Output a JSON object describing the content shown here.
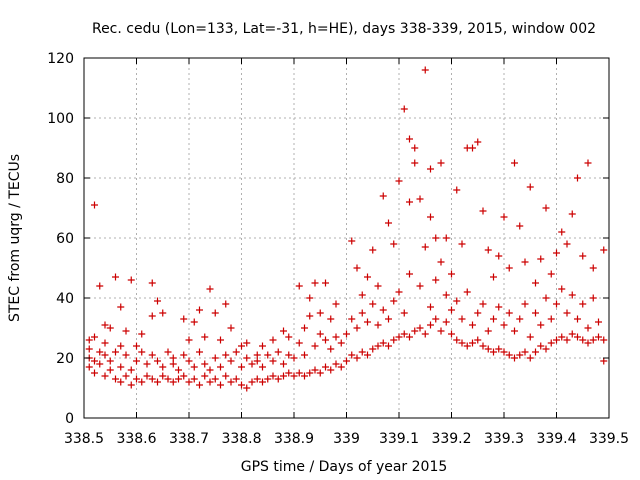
{
  "chart_data": {
    "type": "scatter",
    "title": "Rec. cedu (Lon=133, Lat=-31, h=HE), days 338-339, 2015, window 002",
    "xlabel": "GPS time / Days of year 2015",
    "ylabel": "STEC from uqrg / TECUs",
    "xlim": [
      338.5,
      339.5
    ],
    "ylim": [
      0,
      120
    ],
    "grid": true,
    "marker": "plus",
    "color": "#cc0000",
    "x_ticks": [
      338.5,
      338.6,
      338.7,
      338.8,
      338.9,
      339.0,
      339.1,
      339.2,
      339.3,
      339.4,
      339.5
    ],
    "x_tick_labels": [
      "338.5",
      "338.6",
      "338.7",
      "338.8",
      "338.9",
      "339",
      "339.1",
      "339.2",
      "339.3",
      "339.4",
      "339.5"
    ],
    "y_ticks": [
      0,
      20,
      40,
      60,
      80,
      100,
      120
    ],
    "y_tick_labels": [
      "0",
      "20",
      "40",
      "60",
      "80",
      "100",
      "120"
    ],
    "series": [
      {
        "name": "STEC",
        "points": [
          [
            338.51,
            17
          ],
          [
            338.51,
            20
          ],
          [
            338.51,
            23
          ],
          [
            338.51,
            26
          ],
          [
            338.52,
            71
          ],
          [
            338.52,
            15
          ],
          [
            338.52,
            19
          ],
          [
            338.52,
            27
          ],
          [
            338.53,
            18
          ],
          [
            338.53,
            22
          ],
          [
            338.53,
            44
          ],
          [
            338.54,
            14
          ],
          [
            338.54,
            21
          ],
          [
            338.54,
            25
          ],
          [
            338.54,
            31
          ],
          [
            338.55,
            16
          ],
          [
            338.55,
            19
          ],
          [
            338.55,
            30
          ],
          [
            338.56,
            13
          ],
          [
            338.56,
            22
          ],
          [
            338.56,
            47
          ],
          [
            338.57,
            12
          ],
          [
            338.57,
            17
          ],
          [
            338.57,
            24
          ],
          [
            338.57,
            37
          ],
          [
            338.58,
            14
          ],
          [
            338.58,
            21
          ],
          [
            338.58,
            29
          ],
          [
            338.59,
            11
          ],
          [
            338.59,
            16
          ],
          [
            338.59,
            46
          ],
          [
            338.6,
            13
          ],
          [
            338.6,
            19
          ],
          [
            338.6,
            24
          ],
          [
            338.61,
            12
          ],
          [
            338.61,
            22
          ],
          [
            338.61,
            28
          ],
          [
            338.62,
            14
          ],
          [
            338.62,
            18
          ],
          [
            338.63,
            45
          ],
          [
            338.63,
            13
          ],
          [
            338.63,
            21
          ],
          [
            338.63,
            34
          ],
          [
            338.64,
            12
          ],
          [
            338.64,
            19
          ],
          [
            338.64,
            39
          ],
          [
            338.65,
            14
          ],
          [
            338.65,
            17
          ],
          [
            338.65,
            35
          ],
          [
            338.66,
            13
          ],
          [
            338.66,
            22
          ],
          [
            338.67,
            12
          ],
          [
            338.67,
            18
          ],
          [
            338.67,
            20
          ],
          [
            338.68,
            13
          ],
          [
            338.68,
            16
          ],
          [
            338.69,
            14
          ],
          [
            338.69,
            21
          ],
          [
            338.69,
            33
          ],
          [
            338.7,
            12
          ],
          [
            338.7,
            19
          ],
          [
            338.7,
            26
          ],
          [
            338.71,
            13
          ],
          [
            338.71,
            17
          ],
          [
            338.71,
            32
          ],
          [
            338.72,
            11
          ],
          [
            338.72,
            22
          ],
          [
            338.72,
            36
          ],
          [
            338.73,
            14
          ],
          [
            338.73,
            18
          ],
          [
            338.73,
            27
          ],
          [
            338.74,
            12
          ],
          [
            338.74,
            16
          ],
          [
            338.74,
            43
          ],
          [
            338.75,
            13
          ],
          [
            338.75,
            20
          ],
          [
            338.75,
            35
          ],
          [
            338.76,
            11
          ],
          [
            338.76,
            17
          ],
          [
            338.76,
            26
          ],
          [
            338.77,
            14
          ],
          [
            338.77,
            21
          ],
          [
            338.77,
            38
          ],
          [
            338.78,
            12
          ],
          [
            338.78,
            19
          ],
          [
            338.78,
            30
          ],
          [
            338.79,
            13
          ],
          [
            338.79,
            22
          ],
          [
            338.8,
            11
          ],
          [
            338.8,
            17
          ],
          [
            338.8,
            24
          ],
          [
            338.81,
            10
          ],
          [
            338.81,
            20
          ],
          [
            338.81,
            25
          ],
          [
            338.82,
            12
          ],
          [
            338.82,
            18
          ],
          [
            338.83,
            13
          ],
          [
            338.83,
            19
          ],
          [
            338.83,
            21
          ],
          [
            338.84,
            12
          ],
          [
            338.84,
            17
          ],
          [
            338.84,
            24
          ],
          [
            338.85,
            13
          ],
          [
            338.85,
            21
          ],
          [
            338.86,
            14
          ],
          [
            338.86,
            19
          ],
          [
            338.86,
            26
          ],
          [
            338.87,
            13
          ],
          [
            338.87,
            22
          ],
          [
            338.88,
            14
          ],
          [
            338.88,
            18
          ],
          [
            338.88,
            29
          ],
          [
            338.89,
            15
          ],
          [
            338.89,
            21
          ],
          [
            338.89,
            27
          ],
          [
            338.9,
            14
          ],
          [
            338.9,
            20
          ],
          [
            338.91,
            15
          ],
          [
            338.91,
            25
          ],
          [
            338.91,
            44
          ],
          [
            338.92,
            14
          ],
          [
            338.92,
            21
          ],
          [
            338.92,
            30
          ],
          [
            338.93,
            15
          ],
          [
            338.93,
            34
          ],
          [
            338.93,
            40
          ],
          [
            338.94,
            16
          ],
          [
            338.94,
            24
          ],
          [
            338.94,
            45
          ],
          [
            338.95,
            15
          ],
          [
            338.95,
            28
          ],
          [
            338.95,
            35
          ],
          [
            338.96,
            17
          ],
          [
            338.96,
            26
          ],
          [
            338.96,
            45
          ],
          [
            338.97,
            16
          ],
          [
            338.97,
            23
          ],
          [
            338.97,
            33
          ],
          [
            338.98,
            18
          ],
          [
            338.98,
            27
          ],
          [
            338.98,
            38
          ],
          [
            338.99,
            17
          ],
          [
            338.99,
            25
          ],
          [
            339.0,
            19
          ],
          [
            339.0,
            28
          ],
          [
            339.01,
            21
          ],
          [
            339.01,
            33
          ],
          [
            339.01,
            59
          ],
          [
            339.02,
            20
          ],
          [
            339.02,
            30
          ],
          [
            339.02,
            50
          ],
          [
            339.03,
            22
          ],
          [
            339.03,
            35
          ],
          [
            339.03,
            41
          ],
          [
            339.04,
            21
          ],
          [
            339.04,
            32
          ],
          [
            339.04,
            47
          ],
          [
            339.05,
            23
          ],
          [
            339.05,
            38
          ],
          [
            339.05,
            56
          ],
          [
            339.06,
            24
          ],
          [
            339.06,
            31
          ],
          [
            339.06,
            44
          ],
          [
            339.07,
            25
          ],
          [
            339.07,
            36
          ],
          [
            339.07,
            74
          ],
          [
            339.08,
            24
          ],
          [
            339.08,
            33
          ],
          [
            339.08,
            65
          ],
          [
            339.09,
            26
          ],
          [
            339.09,
            39
          ],
          [
            339.09,
            58
          ],
          [
            339.1,
            27
          ],
          [
            339.1,
            42
          ],
          [
            339.1,
            79
          ],
          [
            339.11,
            28
          ],
          [
            339.11,
            35
          ],
          [
            339.11,
            103
          ],
          [
            339.12,
            27
          ],
          [
            339.12,
            48
          ],
          [
            339.12,
            93
          ],
          [
            339.12,
            72
          ],
          [
            339.13,
            29
          ],
          [
            339.13,
            90
          ],
          [
            339.13,
            85
          ],
          [
            339.14,
            30
          ],
          [
            339.14,
            44
          ],
          [
            339.14,
            73
          ],
          [
            339.15,
            28
          ],
          [
            339.15,
            57
          ],
          [
            339.15,
            116
          ],
          [
            339.16,
            31
          ],
          [
            339.16,
            37
          ],
          [
            339.16,
            67
          ],
          [
            339.16,
            83
          ],
          [
            339.17,
            33
          ],
          [
            339.17,
            46
          ],
          [
            339.17,
            60
          ],
          [
            339.18,
            29
          ],
          [
            339.18,
            52
          ],
          [
            339.18,
            85
          ],
          [
            339.19,
            32
          ],
          [
            339.19,
            41
          ],
          [
            339.19,
            60
          ],
          [
            339.2,
            28
          ],
          [
            339.2,
            36
          ],
          [
            339.2,
            48
          ],
          [
            339.21,
            26
          ],
          [
            339.21,
            39
          ],
          [
            339.21,
            76
          ],
          [
            339.22,
            25
          ],
          [
            339.22,
            33
          ],
          [
            339.22,
            58
          ],
          [
            339.23,
            24
          ],
          [
            339.23,
            42
          ],
          [
            339.23,
            90
          ],
          [
            339.24,
            25
          ],
          [
            339.24,
            31
          ],
          [
            339.24,
            90
          ],
          [
            339.25,
            26
          ],
          [
            339.25,
            35
          ],
          [
            339.25,
            92
          ],
          [
            339.26,
            24
          ],
          [
            339.26,
            38
          ],
          [
            339.26,
            69
          ],
          [
            339.27,
            23
          ],
          [
            339.27,
            29
          ],
          [
            339.27,
            56
          ],
          [
            339.28,
            22
          ],
          [
            339.28,
            33
          ],
          [
            339.28,
            47
          ],
          [
            339.29,
            23
          ],
          [
            339.29,
            37
          ],
          [
            339.29,
            54
          ],
          [
            339.3,
            22
          ],
          [
            339.3,
            31
          ],
          [
            339.3,
            67
          ],
          [
            339.31,
            21
          ],
          [
            339.31,
            35
          ],
          [
            339.31,
            50
          ],
          [
            339.32,
            20
          ],
          [
            339.32,
            29
          ],
          [
            339.32,
            85
          ],
          [
            339.33,
            21
          ],
          [
            339.33,
            33
          ],
          [
            339.33,
            64
          ],
          [
            339.34,
            22
          ],
          [
            339.34,
            38
          ],
          [
            339.34,
            52
          ],
          [
            339.35,
            20
          ],
          [
            339.35,
            27
          ],
          [
            339.35,
            77
          ],
          [
            339.36,
            22
          ],
          [
            339.36,
            35
          ],
          [
            339.36,
            45
          ],
          [
            339.37,
            24
          ],
          [
            339.37,
            31
          ],
          [
            339.37,
            53
          ],
          [
            339.38,
            23
          ],
          [
            339.38,
            40
          ],
          [
            339.38,
            70
          ],
          [
            339.39,
            25
          ],
          [
            339.39,
            33
          ],
          [
            339.39,
            48
          ],
          [
            339.4,
            26
          ],
          [
            339.4,
            38
          ],
          [
            339.4,
            55
          ],
          [
            339.41,
            27
          ],
          [
            339.41,
            43
          ],
          [
            339.41,
            62
          ],
          [
            339.42,
            26
          ],
          [
            339.42,
            35
          ],
          [
            339.42,
            58
          ],
          [
            339.43,
            28
          ],
          [
            339.43,
            41
          ],
          [
            339.43,
            68
          ],
          [
            339.44,
            27
          ],
          [
            339.44,
            33
          ],
          [
            339.44,
            80
          ],
          [
            339.45,
            26
          ],
          [
            339.45,
            38
          ],
          [
            339.45,
            54
          ],
          [
            339.46,
            25
          ],
          [
            339.46,
            30
          ],
          [
            339.46,
            85
          ],
          [
            339.47,
            26
          ],
          [
            339.47,
            40
          ],
          [
            339.47,
            50
          ],
          [
            339.48,
            27
          ],
          [
            339.48,
            32
          ],
          [
            339.49,
            19
          ],
          [
            339.49,
            26
          ],
          [
            339.49,
            56
          ]
        ]
      }
    ]
  }
}
